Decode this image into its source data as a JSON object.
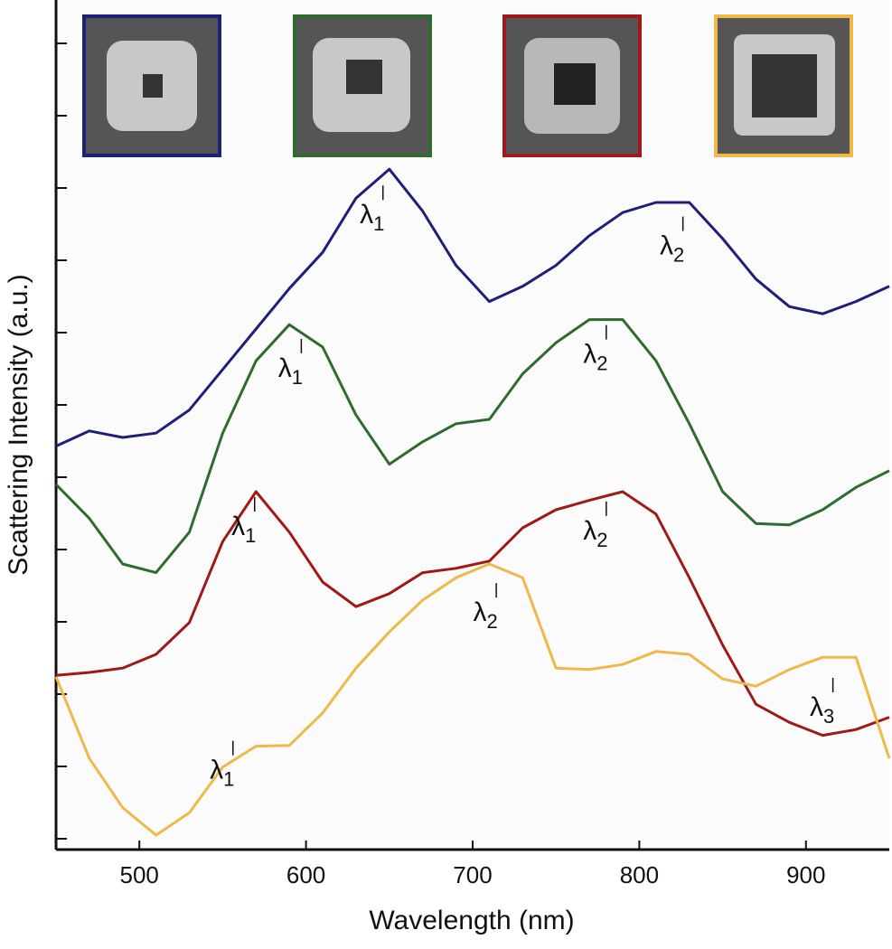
{
  "chart_data": {
    "type": "line",
    "xlabel": "Wavelength (nm)",
    "ylabel": "Scattering Intensity (a.u.)",
    "xlim": [
      450,
      950
    ],
    "xticks": [
      500,
      600,
      700,
      800,
      900
    ],
    "ylim": [
      -0.15,
      11.6
    ],
    "yticks": [
      0,
      1,
      2,
      3,
      4,
      5,
      6,
      7,
      8,
      9,
      10,
      11
    ],
    "x": [
      450,
      470,
      490,
      510,
      530,
      550,
      570,
      590,
      610,
      630,
      650,
      670,
      690,
      710,
      730,
      750,
      770,
      790,
      810,
      830,
      850,
      870,
      890,
      910,
      930,
      950
    ],
    "series": [
      {
        "color": "#1f1f7a",
        "values": [
          5.43,
          5.64,
          5.55,
          5.61,
          5.93,
          6.49,
          7.05,
          7.61,
          8.11,
          8.86,
          9.26,
          8.68,
          7.93,
          7.43,
          7.64,
          7.93,
          8.34,
          8.66,
          8.8,
          8.8,
          8.3,
          7.74,
          7.36,
          7.26,
          7.43,
          7.64
        ]
      },
      {
        "color": "#2e6b2e",
        "values": [
          4.9,
          4.43,
          3.8,
          3.68,
          4.24,
          5.61,
          6.61,
          7.11,
          6.8,
          5.86,
          5.18,
          5.49,
          5.74,
          5.8,
          6.43,
          6.86,
          7.18,
          7.18,
          6.61,
          5.74,
          4.8,
          4.36,
          4.34,
          4.55,
          4.86,
          5.09
        ]
      },
      {
        "color": "#a01818",
        "values": [
          2.26,
          2.3,
          2.36,
          2.55,
          2.99,
          4.11,
          4.8,
          4.24,
          3.55,
          3.21,
          3.39,
          3.68,
          3.74,
          3.84,
          4.3,
          4.55,
          4.68,
          4.8,
          4.49,
          3.61,
          2.68,
          1.86,
          1.61,
          1.43,
          1.51,
          1.68
        ]
      },
      {
        "color": "#f0b848",
        "values": [
          2.24,
          1.11,
          0.43,
          0.05,
          0.36,
          0.99,
          1.28,
          1.29,
          1.74,
          2.36,
          2.86,
          3.3,
          3.61,
          3.8,
          3.61,
          2.36,
          2.34,
          2.41,
          2.59,
          2.55,
          2.21,
          2.11,
          2.34,
          2.51,
          2.51,
          1.11
        ]
      }
    ],
    "annotations": [
      {
        "text": "λ",
        "sub": "1",
        "x": 644,
        "y": 8.61
      },
      {
        "text": "λ",
        "sub": "2",
        "x": 824,
        "y": 8.18
      },
      {
        "text": "λ",
        "sub": "1",
        "x": 595,
        "y": 6.49
      },
      {
        "text": "λ",
        "sub": "2",
        "x": 778,
        "y": 6.68
      },
      {
        "text": "λ",
        "sub": "1",
        "x": 567,
        "y": 4.3
      },
      {
        "text": "λ",
        "sub": "2",
        "x": 778,
        "y": 4.24
      },
      {
        "text": "λ",
        "sub": "2",
        "x": 712,
        "y": 3.11
      },
      {
        "text": "λ",
        "sub": "1",
        "x": 554,
        "y": 0.93
      },
      {
        "text": "λ",
        "sub": "3",
        "x": 914,
        "y": 1.8
      }
    ]
  }
}
